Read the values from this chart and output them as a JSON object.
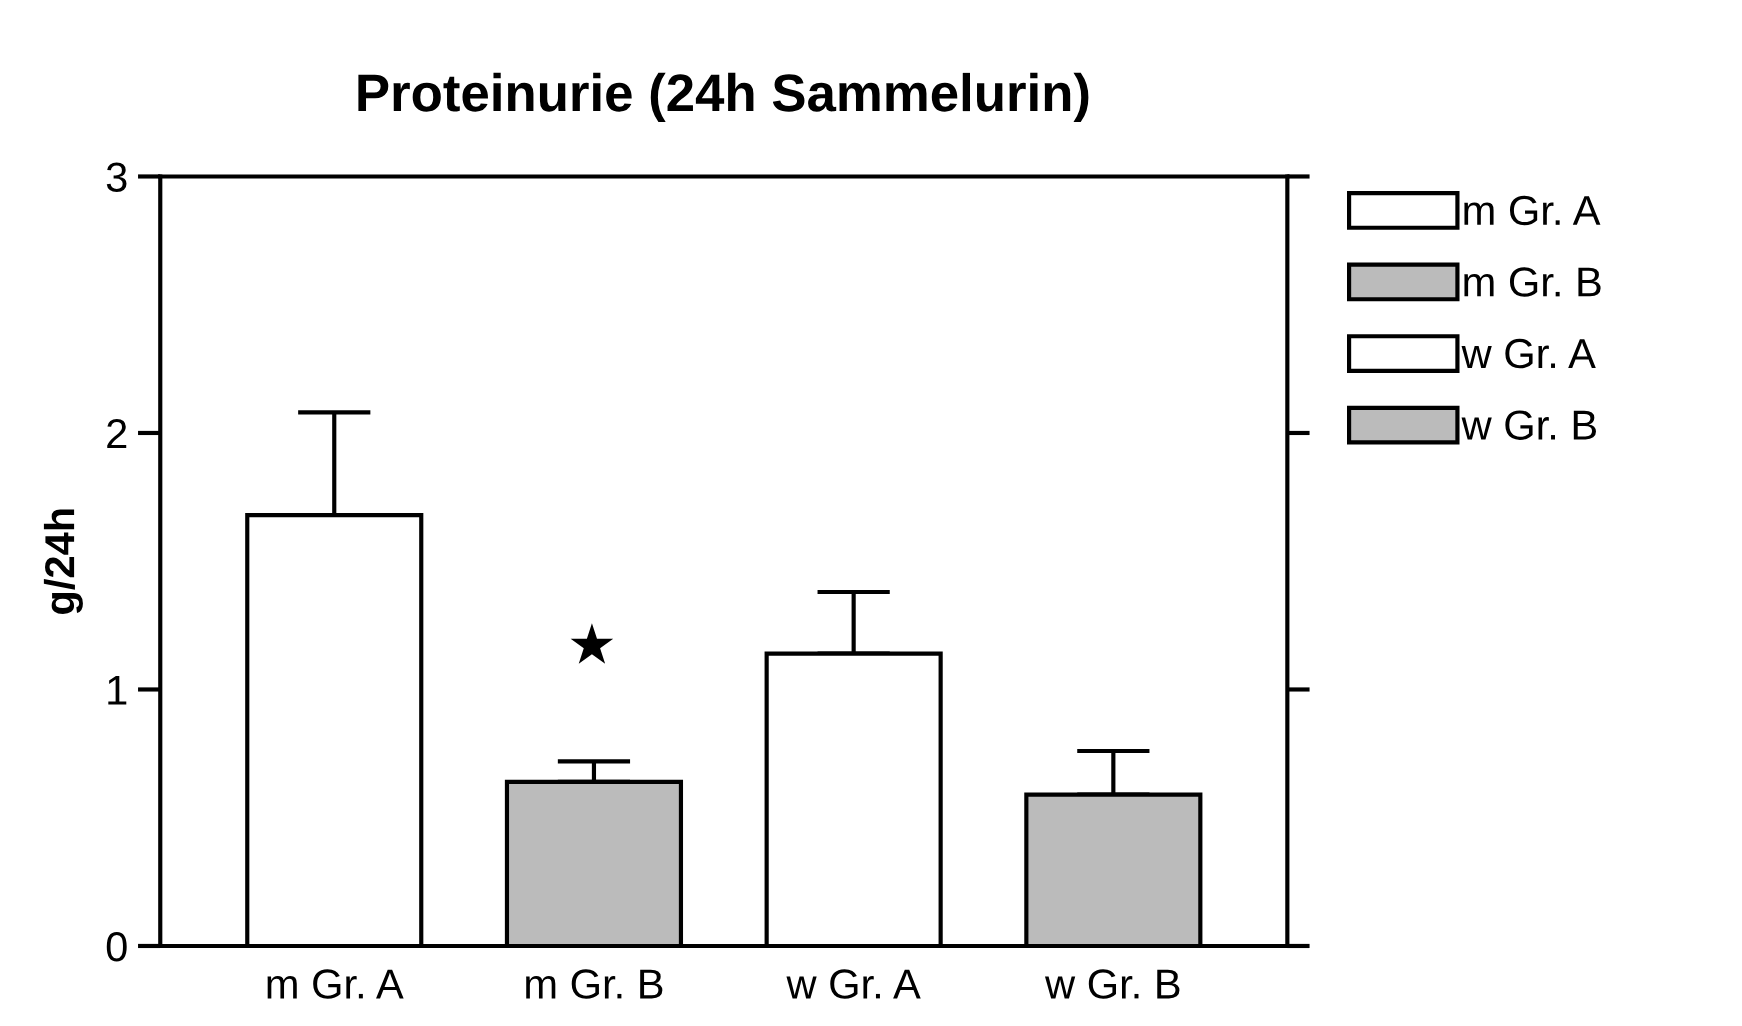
{
  "chart_data": {
    "type": "bar",
    "title": "Proteinurie (24h Sammelurin)",
    "ylabel": "g/24h",
    "categories": [
      "m Gr. A",
      "m Gr. B",
      "w Gr. A",
      "w Gr. B"
    ],
    "series": [
      {
        "name": "m Gr. A",
        "color": "#ffffff",
        "values": [
          1.68,
          null,
          null,
          null
        ],
        "errors": [
          0.4,
          null,
          null,
          null
        ]
      },
      {
        "name": "m Gr. B",
        "color": "#bbbbbb",
        "values": [
          null,
          0.64,
          null,
          null
        ],
        "errors": [
          null,
          0.08,
          null,
          null
        ]
      },
      {
        "name": "w Gr. A",
        "color": "#ffffff",
        "values": [
          null,
          null,
          1.14,
          null
        ],
        "errors": [
          null,
          null,
          0.24,
          null
        ]
      },
      {
        "name": "w Gr. B",
        "color": "#bbbbbb",
        "values": [
          null,
          null,
          null,
          0.59
        ],
        "errors": [
          null,
          null,
          null,
          0.17
        ]
      }
    ],
    "ylim": [
      0,
      3
    ],
    "yticks": [
      0,
      1,
      2,
      3
    ],
    "grid": false,
    "legend": "top right",
    "annotations": [
      "★"
    ]
  }
}
